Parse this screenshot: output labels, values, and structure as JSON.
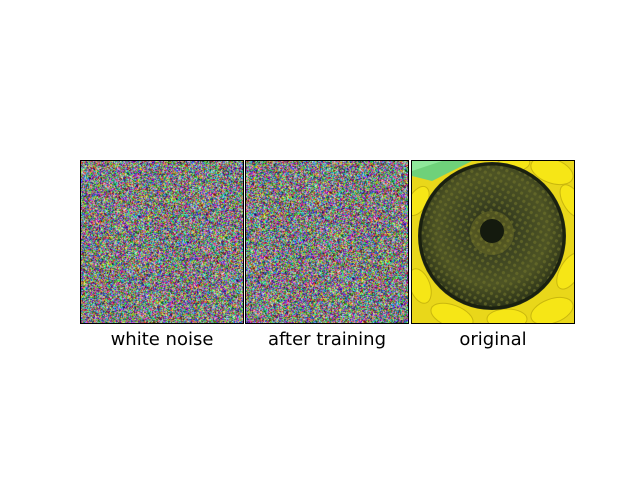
{
  "panels": [
    {
      "caption": "white noise",
      "content": "white-noise"
    },
    {
      "caption": "after training",
      "content": "noise-after-training"
    },
    {
      "caption": "original",
      "content": "sunflower-photo"
    }
  ],
  "colors": {
    "petal_yellow": "#f2e21a",
    "seed_dark": "#2c331b",
    "seed_olive": "#5a5f22",
    "leaf_green": "#5fd06a"
  }
}
